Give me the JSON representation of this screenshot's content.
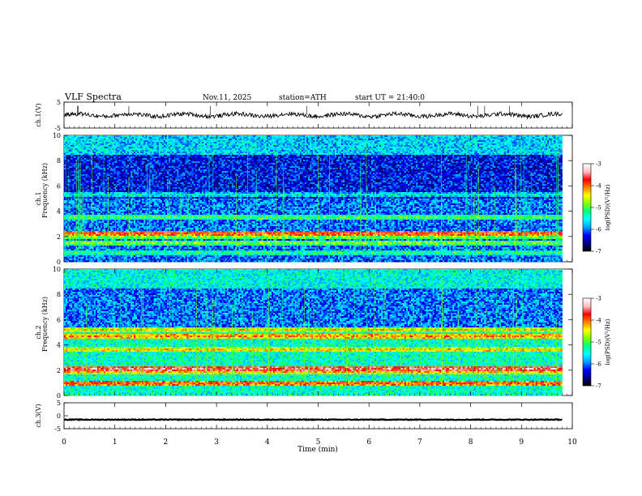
{
  "header": {
    "title": "VLF Spectra",
    "date": "Nov.11, 2025",
    "station": "station=ATH",
    "start": "start UT = 21:40:0"
  },
  "chart_data": {
    "type": "heatmap",
    "x": {
      "label": "Time (min)",
      "range": [
        0,
        10
      ],
      "ticks": [
        "0",
        "1",
        "2",
        "3",
        "4",
        "5",
        "6",
        "7",
        "8",
        "9",
        "10"
      ]
    },
    "panels": [
      {
        "name": "ch1-waveform",
        "type": "line",
        "ylabel": "ch.1(V)",
        "ylim": [
          -5,
          5
        ],
        "yticks": [
          "5",
          "-5"
        ],
        "trace": {
          "mean": 0,
          "noise_amplitude": 0.8,
          "x_end": 9.8
        }
      },
      {
        "name": "ch1-spectrogram",
        "type": "heatmap",
        "ylabel_lines": [
          "ch.1",
          "Frequency (kHz)"
        ],
        "ylim": [
          0,
          10
        ],
        "yticks": [
          "0",
          "2",
          "4",
          "6",
          "8",
          "10"
        ],
        "x_end": 9.8,
        "bands": [
          {
            "f": 0.1,
            "level": -7
          },
          {
            "f": 0.3,
            "level": -7
          },
          {
            "f": 0.7,
            "level": -5.2
          },
          {
            "f": 1.5,
            "level": -4.8
          },
          {
            "f": 2.0,
            "level": -4.8
          },
          {
            "f": 2.3,
            "level": -3.7
          },
          {
            "f": 3.5,
            "level": -5.0
          },
          {
            "f": 5.3,
            "level": -5.5
          }
        ]
      },
      {
        "name": "ch2-spectrogram",
        "type": "heatmap",
        "ylabel_lines": [
          "ch.2",
          "Frequency (kHz)"
        ],
        "ylim": [
          0,
          10
        ],
        "yticks": [
          "0",
          "2",
          "4",
          "6",
          "8",
          "10"
        ],
        "x_end": 9.8,
        "bands": [
          {
            "f": 0.2,
            "level": -7
          },
          {
            "f": 1.0,
            "level": -3.8
          },
          {
            "f": 1.9,
            "level": -4.2
          },
          {
            "f": 2.1,
            "level": -3.5
          },
          {
            "f": 3.6,
            "level": -4.3
          },
          {
            "f": 4.7,
            "level": -4.1
          },
          {
            "f": 5.2,
            "level": -4.4
          }
        ]
      },
      {
        "name": "ch3-waveform",
        "type": "line",
        "ylabel": "ch.3(V)",
        "ylim": [
          -5,
          5
        ],
        "yticks": [
          "5",
          "0",
          "-5"
        ],
        "trace": {
          "mean": -1.5,
          "noise_amplitude": 0.15,
          "x_end": 9.8
        }
      }
    ],
    "colorbars": [
      {
        "name": "ch1-colorbar",
        "label": "log(PSD)(V²/Hz)",
        "range": [
          -7,
          -3
        ],
        "ticks": [
          "-3",
          "-4",
          "-5",
          "-6",
          "-7"
        ]
      },
      {
        "name": "ch2-colorbar",
        "label": "log(PSD)(V²/Hz)",
        "range": [
          -7,
          -3
        ],
        "ticks": [
          "-3",
          "-4",
          "-5",
          "-6",
          "-7"
        ]
      }
    ],
    "colorscale": [
      "#000000",
      "#000080",
      "#0000ff",
      "#00a0ff",
      "#00ffff",
      "#00ff80",
      "#80ff00",
      "#ffff00",
      "#ff8000",
      "#ff0000",
      "#ffc0c0",
      "#ffffff"
    ]
  }
}
